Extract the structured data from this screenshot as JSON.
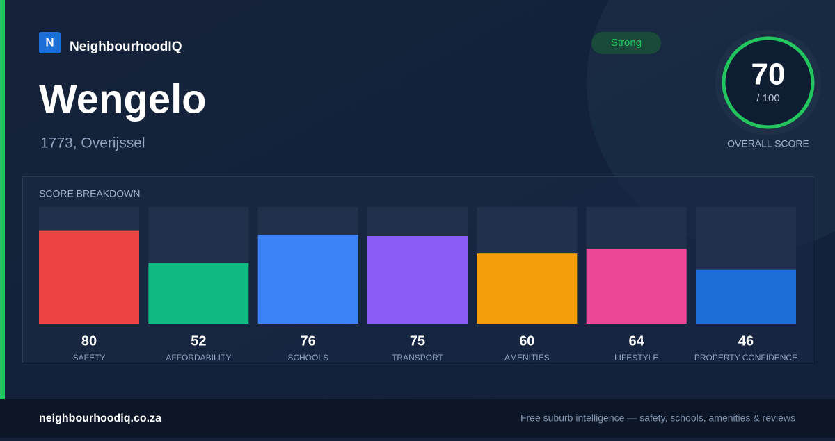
{
  "brand": {
    "logo": "N",
    "name": "NeighbourhoodIQ"
  },
  "title": "Wengelo",
  "subtitle": "1773, Overijssel",
  "badge": "Strong",
  "score": {
    "value": 70,
    "out_of": "/ 100",
    "label": "OVERALL SCORE",
    "max": 100
  },
  "footer": {
    "url": "neighbourhoodiq.co.za",
    "tagline": "Free suburb intelligence — safety, schools, amenities & reviews"
  },
  "chart_data": {
    "type": "bar",
    "title": "SCORE BREAKDOWN",
    "categories": [
      "SAFETY",
      "AFFORDABILITY",
      "SCHOOLS",
      "TRANSPORT",
      "AMENITIES",
      "LIFESTYLE",
      "PROPERTY CONFIDENCE"
    ],
    "values": [
      80,
      52,
      76,
      75,
      60,
      64,
      46
    ],
    "colors": [
      "#ef4444",
      "#10b981",
      "#3b82f6",
      "#8b5cf6",
      "#f59e0b",
      "#ec4899",
      "#1d6fd8"
    ],
    "ylim": [
      0,
      100
    ]
  }
}
